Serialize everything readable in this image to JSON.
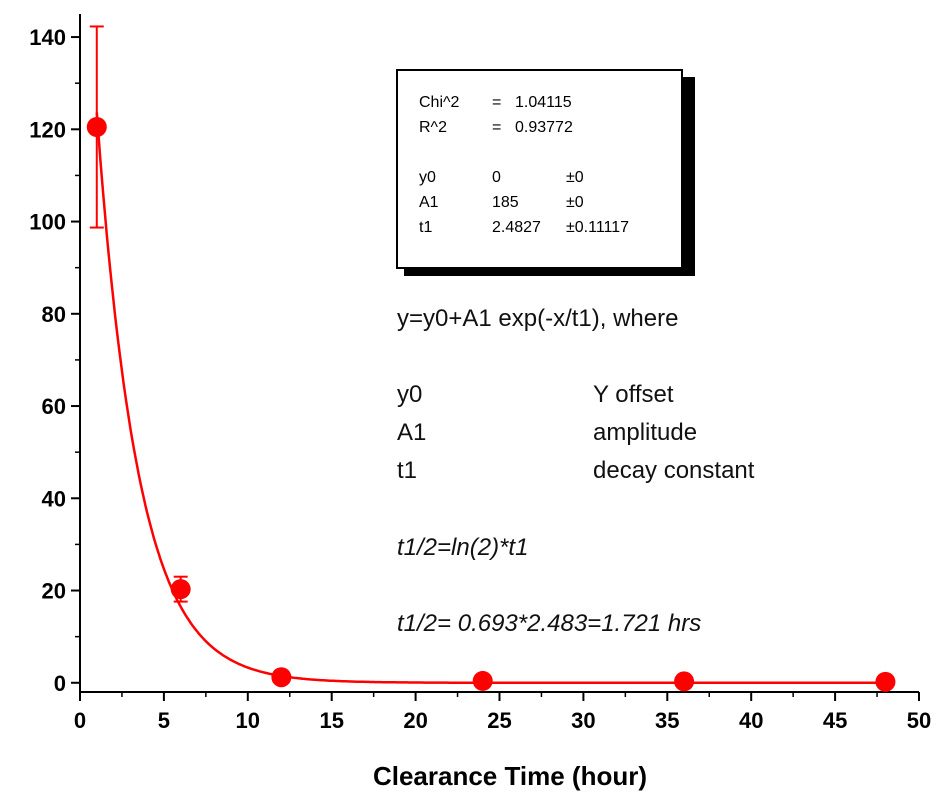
{
  "chart_data": {
    "type": "scatter",
    "xlabel": "Clearance Time (hour)",
    "ylabel": "",
    "xlim": [
      0,
      50
    ],
    "ylim": [
      -2,
      145
    ],
    "xticks": [
      0,
      5,
      10,
      15,
      20,
      25,
      30,
      35,
      40,
      45,
      50
    ],
    "yticks": [
      0,
      20,
      40,
      60,
      80,
      100,
      120,
      140
    ],
    "grid": false,
    "marker_color": "#ff0000",
    "points": [
      {
        "x": 1,
        "y": 120.5,
        "err": 21.8
      },
      {
        "x": 6,
        "y": 20.3,
        "err": 2.7
      },
      {
        "x": 12,
        "y": 1.2,
        "err": 0
      },
      {
        "x": 24,
        "y": 0.4,
        "err": 0
      },
      {
        "x": 36,
        "y": 0.3,
        "err": 0
      },
      {
        "x": 48,
        "y": 0.2,
        "err": 0
      }
    ],
    "fit": {
      "model": "exponential decay",
      "y0": 0,
      "A1": 185,
      "t1": 2.4827
    },
    "fit_table": [
      {
        "name": "Chi^2",
        "eq": "=",
        "value": "1.04115",
        "err": ""
      },
      {
        "name": "R^2",
        "eq": "=",
        "value": "0.93772",
        "err": ""
      },
      {
        "name": "",
        "eq": "",
        "value": "",
        "err": ""
      },
      {
        "name": "y0",
        "eq": "",
        "value": "0",
        "err": "±0"
      },
      {
        "name": "A1",
        "eq": "",
        "value": "185",
        "err": "±0"
      },
      {
        "name": "t1",
        "eq": "",
        "value": "2.4827",
        "err": "±0.11117"
      }
    ],
    "annotations": {
      "equation": "y=y0+A1 exp(-x/t1), where",
      "params": [
        {
          "symbol": "y0",
          "desc": "Y offset"
        },
        {
          "symbol": "A1",
          "desc": "amplitude"
        },
        {
          "symbol": "t1",
          "desc": "decay constant"
        }
      ],
      "half_life_formula": "t1/2=ln(2)*t1",
      "half_life_value": "t1/2= 0.693*2.483=1.721 hrs"
    }
  }
}
